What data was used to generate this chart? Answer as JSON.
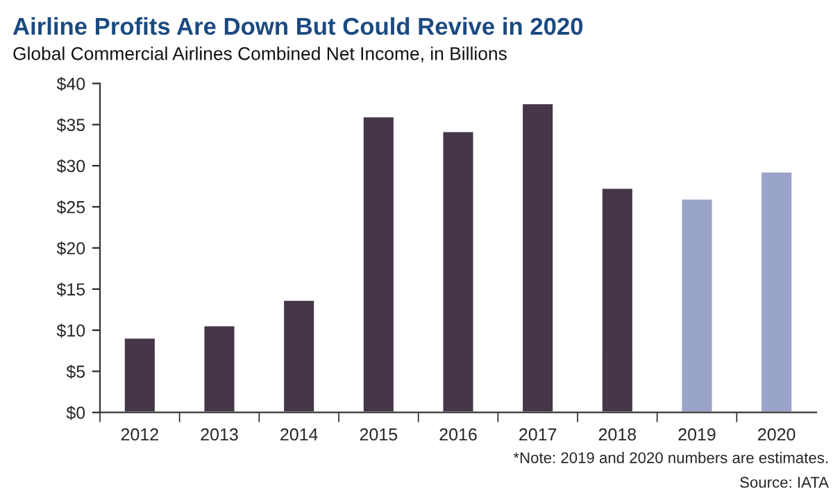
{
  "chart_data": {
    "type": "bar",
    "title": "Airline Profits Are Down But Could Revive in 2020",
    "subtitle": "Global Commercial Airlines Combined Net Income, in Billions",
    "categories": [
      "2012",
      "2013",
      "2014",
      "2015",
      "2016",
      "2017",
      "2018",
      "2019",
      "2020"
    ],
    "values": [
      9.1,
      10.6,
      13.7,
      36.0,
      34.2,
      37.6,
      27.3,
      26.0,
      29.3
    ],
    "colors": [
      "#45364a",
      "#45364a",
      "#45364a",
      "#45364a",
      "#45364a",
      "#45364a",
      "#45364a",
      "#9aa3c9",
      "#9aa3c9"
    ],
    "ylim": [
      0,
      40
    ],
    "yticks": [
      {
        "value": 0,
        "label": "$0"
      },
      {
        "value": 5,
        "label": "$5"
      },
      {
        "value": 10,
        "label": "$10"
      },
      {
        "value": 15,
        "label": "$15"
      },
      {
        "value": 20,
        "label": "$20"
      },
      {
        "value": 25,
        "label": "$25"
      },
      {
        "value": 30,
        "label": "$30"
      },
      {
        "value": 35,
        "label": "$35"
      },
      {
        "value": 40,
        "label": "$40"
      }
    ],
    "grid": false,
    "annotations": [
      "*Note: 2019 and 2020 numbers are estimates.",
      "Source: IATA"
    ]
  }
}
